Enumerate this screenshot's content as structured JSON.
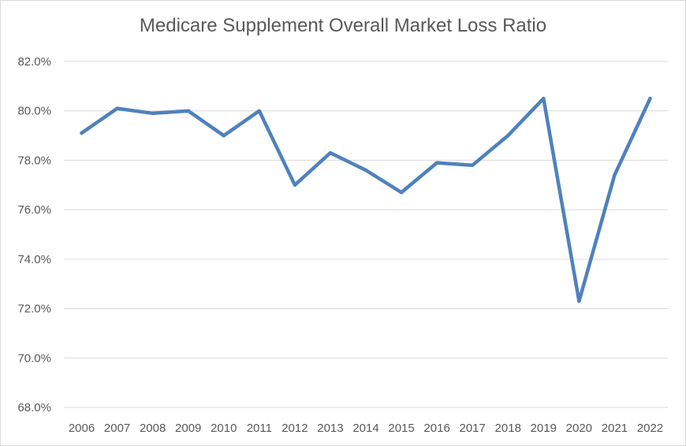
{
  "chart_data": {
    "type": "line",
    "title": "Medicare Supplement Overall Market Loss Ratio",
    "xlabel": "",
    "ylabel": "",
    "categories": [
      "2006",
      "2007",
      "2008",
      "2009",
      "2010",
      "2011",
      "2012",
      "2013",
      "2014",
      "2015",
      "2016",
      "2017",
      "2018",
      "2019",
      "2020",
      "2021",
      "2022"
    ],
    "series": [
      {
        "values": [
          79.1,
          80.1,
          79.9,
          80.0,
          79.0,
          80.0,
          77.0,
          78.3,
          77.6,
          76.7,
          77.9,
          77.8,
          79.0,
          80.5,
          72.3,
          77.4,
          80.5
        ],
        "color": "#4f81bd"
      }
    ],
    "ylim": [
      68,
      82
    ],
    "yticks": [
      68,
      70,
      72,
      74,
      76,
      78,
      80,
      82
    ],
    "ytick_labels": [
      "68.0%",
      "70.0%",
      "72.0%",
      "74.0%",
      "76.0%",
      "78.0%",
      "80.0%",
      "82.0%"
    ],
    "grid": true,
    "legend": "none"
  }
}
